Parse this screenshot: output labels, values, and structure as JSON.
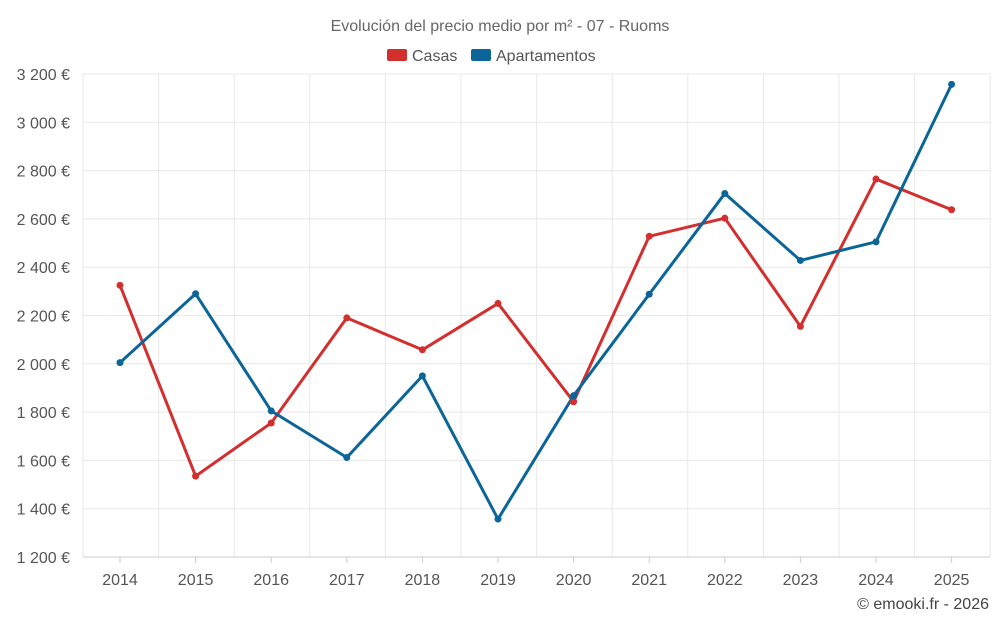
{
  "chart_data": {
    "type": "line",
    "title": "Evolución del precio medio por m² - 07 - Ruoms",
    "categories": [
      "2014",
      "2015",
      "2016",
      "2017",
      "2018",
      "2019",
      "2020",
      "2021",
      "2022",
      "2023",
      "2024",
      "2025"
    ],
    "series": [
      {
        "name": "Casas",
        "color": "#d32f2f",
        "values": [
          2325,
          1535,
          1755,
          2190,
          2058,
          2250,
          1843,
          2528,
          2603,
          2155,
          2765,
          2638
        ]
      },
      {
        "name": "Apartamentos",
        "color": "#0c6598",
        "values": [
          2005,
          2290,
          1805,
          1612,
          1950,
          1357,
          1868,
          2288,
          2705,
          2428,
          2505,
          3157
        ]
      }
    ],
    "ylim": [
      1200,
      3200
    ],
    "yticks": [
      1200,
      1400,
      1600,
      1800,
      2000,
      2200,
      2400,
      2600,
      2800,
      3000,
      3200
    ],
    "ytick_labels": [
      "1 200 €",
      "1 400 €",
      "1 600 €",
      "1 800 €",
      "2 000 €",
      "2 200 €",
      "2 400 €",
      "2 600 €",
      "2 800 €",
      "3 000 €",
      "3 200 €"
    ],
    "xlabel": "",
    "ylabel": "",
    "grid": true,
    "legend_position": "top-center"
  },
  "credit": "© emooki.fr - 2026"
}
